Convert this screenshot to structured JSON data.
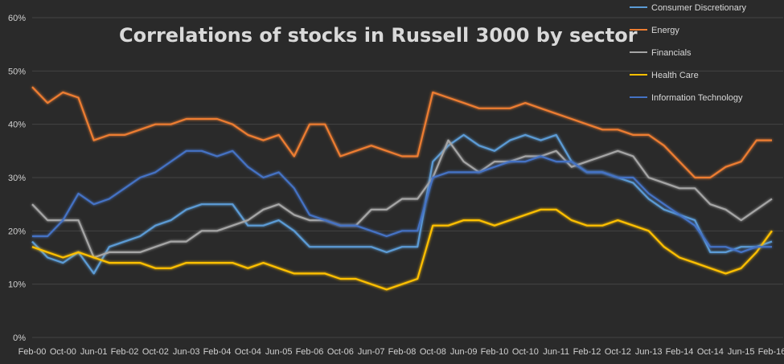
{
  "chart_data": {
    "type": "line",
    "title": "Correlations of stocks in Russell 3000 by sector",
    "xlabel": "",
    "ylabel": "",
    "ylim": [
      0,
      60
    ],
    "y_ticks": [
      "0%",
      "10%",
      "20%",
      "30%",
      "40%",
      "50%",
      "60%"
    ],
    "grid": "horizontal",
    "legend_position": "top-right",
    "x_tick_labels": [
      "Feb-00",
      "Oct-00",
      "Jun-01",
      "Feb-02",
      "Oct-02",
      "Jun-03",
      "Feb-04",
      "Oct-04",
      "Jun-05",
      "Feb-06",
      "Oct-06",
      "Jun-07",
      "Feb-08",
      "Oct-08",
      "Jun-09",
      "Feb-10",
      "Oct-10",
      "Jun-11",
      "Feb-12",
      "Oct-12",
      "Jun-13",
      "Feb-14",
      "Oct-14",
      "Jun-15",
      "Feb-16"
    ],
    "x": [
      "Feb-00",
      "Jun-00",
      "Oct-00",
      "Feb-01",
      "Jun-01",
      "Oct-01",
      "Feb-02",
      "Jun-02",
      "Oct-02",
      "Feb-03",
      "Jun-03",
      "Oct-03",
      "Feb-04",
      "Jun-04",
      "Oct-04",
      "Feb-05",
      "Jun-05",
      "Oct-05",
      "Feb-06",
      "Jun-06",
      "Oct-06",
      "Feb-07",
      "Jun-07",
      "Oct-07",
      "Feb-08",
      "Jun-08",
      "Oct-08",
      "Feb-09",
      "Jun-09",
      "Oct-09",
      "Feb-10",
      "Jun-10",
      "Oct-10",
      "Feb-11",
      "Jun-11",
      "Oct-11",
      "Feb-12",
      "Jun-12",
      "Oct-12",
      "Feb-13",
      "Jun-13",
      "Oct-13",
      "Feb-14",
      "Jun-14",
      "Oct-14",
      "Feb-15",
      "Jun-15",
      "Oct-15",
      "Feb-16"
    ],
    "series": [
      {
        "name": "Consumer Discretionary",
        "color": "#5b9bd5",
        "values": [
          18,
          15,
          14,
          16,
          12,
          17,
          18,
          19,
          21,
          22,
          24,
          25,
          25,
          25,
          21,
          21,
          22,
          20,
          17,
          17,
          17,
          17,
          17,
          16,
          17,
          17,
          33,
          36,
          38,
          36,
          35,
          37,
          38,
          37,
          38,
          33,
          31,
          31,
          30,
          29,
          26,
          24,
          23,
          22,
          16,
          16,
          17,
          17,
          18
        ]
      },
      {
        "name": "Energy",
        "color": "#ed7d31",
        "values": [
          47,
          44,
          46,
          45,
          37,
          38,
          38,
          39,
          40,
          40,
          41,
          41,
          41,
          40,
          38,
          37,
          38,
          34,
          40,
          40,
          34,
          35,
          36,
          35,
          34,
          34,
          46,
          45,
          44,
          43,
          43,
          43,
          44,
          43,
          42,
          41,
          40,
          39,
          39,
          38,
          38,
          36,
          33,
          30,
          30,
          32,
          33,
          37,
          37
        ]
      },
      {
        "name": "Financials",
        "color": "#a5a5a5",
        "values": [
          25,
          22,
          22,
          22,
          15,
          16,
          16,
          16,
          17,
          18,
          18,
          20,
          20,
          21,
          22,
          24,
          25,
          23,
          22,
          22,
          21,
          21,
          24,
          24,
          26,
          26,
          30,
          37,
          33,
          31,
          33,
          33,
          34,
          34,
          35,
          32,
          33,
          34,
          35,
          34,
          30,
          29,
          28,
          28,
          25,
          24,
          22,
          24,
          26
        ]
      },
      {
        "name": "Health Care",
        "color": "#ffc000",
        "values": [
          17,
          16,
          15,
          16,
          15,
          14,
          14,
          14,
          13,
          13,
          14,
          14,
          14,
          14,
          13,
          14,
          13,
          12,
          12,
          12,
          11,
          11,
          10,
          9,
          10,
          11,
          21,
          21,
          22,
          22,
          21,
          22,
          23,
          24,
          24,
          22,
          21,
          21,
          22,
          21,
          20,
          17,
          15,
          14,
          13,
          12,
          13,
          16,
          20
        ]
      },
      {
        "name": "Information Technology",
        "color": "#4472c4",
        "values": [
          19,
          19,
          22,
          27,
          25,
          26,
          28,
          30,
          31,
          33,
          35,
          35,
          34,
          35,
          32,
          30,
          31,
          28,
          23,
          22,
          21,
          21,
          20,
          19,
          20,
          20,
          30,
          31,
          31,
          31,
          32,
          33,
          33,
          34,
          33,
          33,
          31,
          31,
          30,
          30,
          27,
          25,
          23,
          21,
          17,
          17,
          16,
          17,
          17
        ]
      }
    ]
  }
}
